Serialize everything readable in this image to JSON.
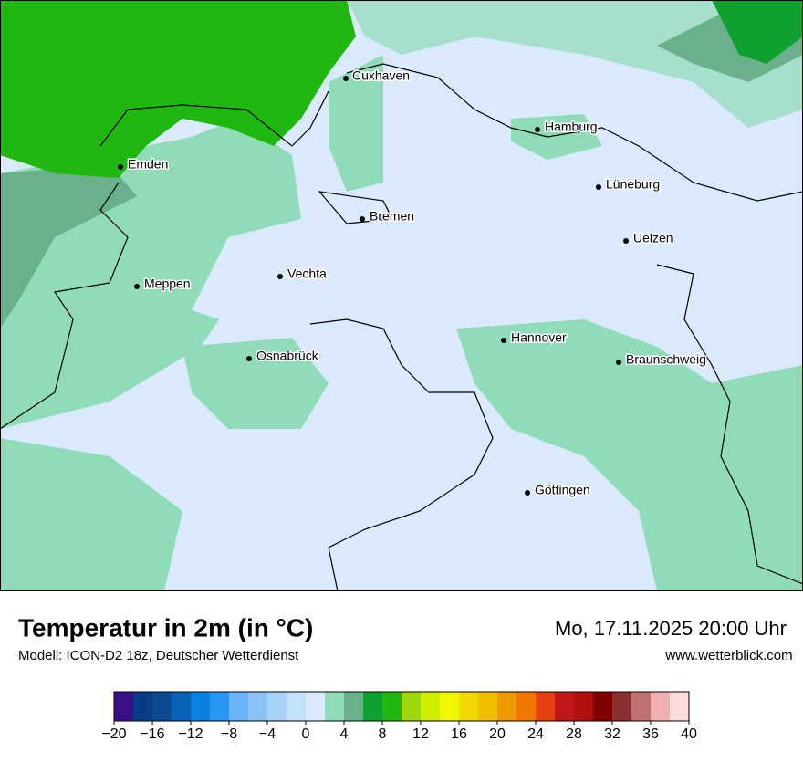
{
  "header": {
    "title": "Temperatur in 2m (in °C)",
    "subtitle": "Modell: ICON-D2 18z, Deutscher Wetterdienst",
    "date": "Mo, 17.11.2025 20:00 Uhr",
    "website": "www.wetterblick.com"
  },
  "cities": [
    "Cuxhaven",
    "Hamburg",
    "Emden",
    "Lüneburg",
    "Bremen",
    "Uelzen",
    "Vechta",
    "Meppen",
    "Hannover",
    "Osnabrück",
    "Braunschweig",
    "Göttingen"
  ],
  "colorbar": {
    "colors": [
      "#3b0f8a",
      "#0b3a87",
      "#0a4a8e",
      "#0a62b8",
      "#0a82e2",
      "#2a96f2",
      "#6ab4f8",
      "#8ac2f8",
      "#a8d2fa",
      "#c4e0fb",
      "#daeafc",
      "#90dcb8",
      "#6ab08a",
      "#10a030",
      "#20b810",
      "#a0d810",
      "#d0ec00",
      "#f0f800",
      "#f0d800",
      "#f0c000",
      "#f09800",
      "#f07800",
      "#e84010",
      "#c01818",
      "#b01010",
      "#800000",
      "#8a3030",
      "#c07070",
      "#f0b0b0",
      "#fcdcdc"
    ],
    "lim": [
      -20,
      40
    ],
    "ticks": [
      {
        "value": -20,
        "label": "−20"
      },
      {
        "value": -16,
        "label": "−16"
      },
      {
        "value": -12,
        "label": "−12"
      },
      {
        "value": -8,
        "label": "−8"
      },
      {
        "value": -4,
        "label": "−4"
      },
      0,
      4,
      8,
      12,
      16,
      20,
      24,
      28,
      32,
      36,
      40
    ]
  }
}
